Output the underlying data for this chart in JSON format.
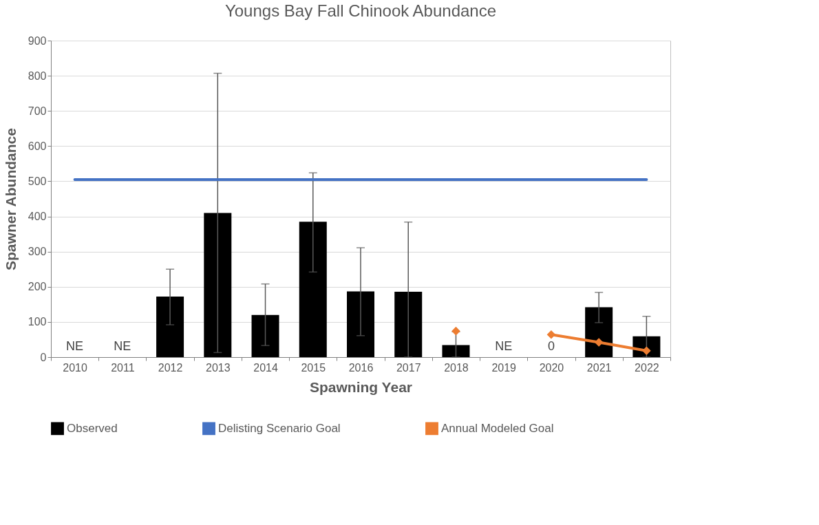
{
  "chart_data": {
    "type": "bar",
    "title": "Youngs Bay Fall Chinook Abundance",
    "xlabel": "Spawning Year",
    "ylabel": "Spawner Abundance",
    "categories": [
      "2010",
      "2011",
      "2012",
      "2013",
      "2014",
      "2015",
      "2016",
      "2017",
      "2018",
      "2019",
      "2020",
      "2021",
      "2022"
    ],
    "series": [
      {
        "name": "Observed",
        "color": "#000000",
        "values": [
          null,
          null,
          172,
          410,
          120,
          385,
          187,
          186,
          34,
          null,
          0,
          142,
          59
        ],
        "errors": [
          null,
          null,
          [
            92,
            250
          ],
          [
            13,
            807
          ],
          [
            33,
            208
          ],
          [
            242,
            524
          ],
          [
            61,
            311
          ],
          [
            0,
            384
          ],
          [
            0,
            72
          ],
          null,
          null,
          [
            98,
            184
          ],
          [
            0,
            116
          ]
        ],
        "value_labels": [
          "NE",
          "NE",
          null,
          null,
          null,
          null,
          null,
          null,
          null,
          "NE",
          "0",
          null,
          null
        ]
      },
      {
        "name": "Delisting Scenario Goal",
        "type": "line",
        "color": "#4472c4",
        "marker": "none",
        "values": [
          505,
          505,
          505,
          505,
          505,
          505,
          505,
          505,
          505,
          505,
          505,
          505,
          505
        ]
      },
      {
        "name": "Annual Modeled Goal",
        "type": "line",
        "color": "#ed7d31",
        "marker": "diamond",
        "values": [
          null,
          null,
          null,
          null,
          null,
          null,
          null,
          null,
          74,
          null,
          64,
          42,
          18
        ]
      }
    ],
    "ylim": [
      0,
      900
    ],
    "yticks": [
      0,
      100,
      200,
      300,
      400,
      500,
      600,
      700,
      800,
      900
    ],
    "grid": "y",
    "legend": "bottom"
  }
}
